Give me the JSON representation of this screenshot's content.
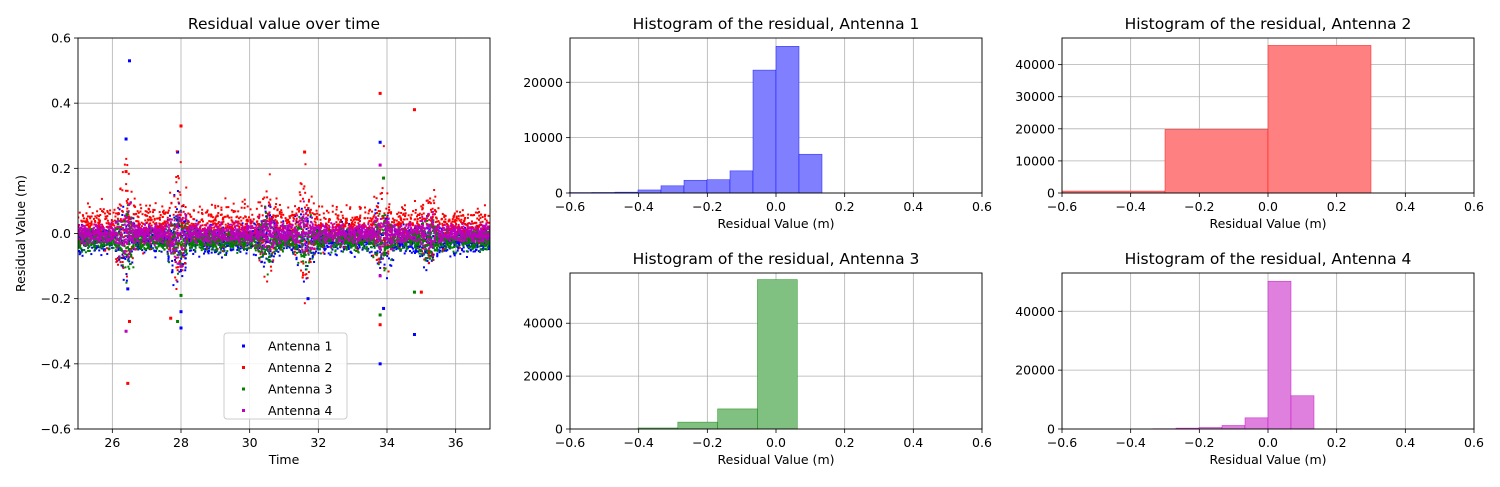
{
  "chart_data": [
    {
      "type": "scatter",
      "title": "Residual value over time",
      "xlabel": "Time",
      "ylabel": "Residual Value (m)",
      "xlim": [
        25,
        37
      ],
      "ylim": [
        -0.6,
        0.6
      ],
      "xticks": [
        "26",
        "28",
        "30",
        "32",
        "34",
        "36"
      ],
      "yticks": [
        "−0.6",
        "−0.4",
        "−0.2",
        "0.0",
        "0.2",
        "0.4",
        "0.6"
      ],
      "grid": true,
      "legend_position": "lower-center",
      "series": [
        {
          "name": "Antenna 1",
          "color": "#0000ff",
          "band": {
            "center": -0.02,
            "spread": 0.09
          },
          "spikes": [
            [
              26.4,
              0.29
            ],
            [
              26.45,
              -0.17
            ],
            [
              26.5,
              0.53
            ],
            [
              28.0,
              -0.29
            ],
            [
              28.0,
              -0.24
            ],
            [
              27.9,
              0.25
            ],
            [
              31.7,
              -0.2
            ],
            [
              33.8,
              0.28
            ],
            [
              33.8,
              -0.4
            ],
            [
              34.8,
              -0.31
            ],
            [
              33.9,
              -0.23
            ]
          ]
        },
        {
          "name": "Antenna 2",
          "color": "#ff0000",
          "band": {
            "center": 0.02,
            "spread": 0.13
          },
          "spikes": [
            [
              26.45,
              -0.46
            ],
            [
              26.5,
              -0.27
            ],
            [
              26.4,
              0.19
            ],
            [
              28.0,
              0.33
            ],
            [
              27.7,
              -0.26
            ],
            [
              31.6,
              0.25
            ],
            [
              33.8,
              0.43
            ],
            [
              34.8,
              0.38
            ],
            [
              33.8,
              -0.28
            ],
            [
              35.0,
              -0.18
            ]
          ]
        },
        {
          "name": "Antenna 3",
          "color": "#008000",
          "band": {
            "center": -0.02,
            "spread": 0.07
          },
          "spikes": [
            [
              28.0,
              -0.19
            ],
            [
              33.9,
              0.17
            ],
            [
              33.8,
              -0.25
            ],
            [
              34.8,
              -0.18
            ],
            [
              27.9,
              -0.27
            ]
          ]
        },
        {
          "name": "Antenna 4",
          "color": "#bf00bf",
          "band": {
            "center": 0.0,
            "spread": 0.06
          },
          "spikes": [
            [
              26.4,
              -0.3
            ],
            [
              33.8,
              0.21
            ],
            [
              28.0,
              -0.1
            ],
            [
              33.8,
              -0.13
            ]
          ]
        }
      ]
    },
    {
      "type": "bar",
      "title": "Histogram of the residual, Antenna 1",
      "xlabel": "Residual Value (m)",
      "xlim": [
        -0.6,
        0.6
      ],
      "ylim": [
        0,
        28000
      ],
      "xticks": [
        "−0.6",
        "−0.4",
        "−0.2",
        "0.0",
        "0.2",
        "0.4",
        "0.6"
      ],
      "yticks": [
        {
          "v": 0,
          "t": "0"
        },
        {
          "v": 10000,
          "t": "10000"
        },
        {
          "v": 20000,
          "t": "20000"
        }
      ],
      "color": "#8080ff",
      "edge": "#0000ff",
      "bins": [
        {
          "x0": -0.603,
          "x1": -0.536,
          "v": 80
        },
        {
          "x0": -0.536,
          "x1": -0.469,
          "v": 100
        },
        {
          "x0": -0.469,
          "x1": -0.402,
          "v": 150
        },
        {
          "x0": -0.402,
          "x1": -0.335,
          "v": 550
        },
        {
          "x0": -0.335,
          "x1": -0.268,
          "v": 1300
        },
        {
          "x0": -0.268,
          "x1": -0.201,
          "v": 2300
        },
        {
          "x0": -0.201,
          "x1": -0.134,
          "v": 2400
        },
        {
          "x0": -0.134,
          "x1": -0.067,
          "v": 4000
        },
        {
          "x0": -0.067,
          "x1": 0.0,
          "v": 22200
        },
        {
          "x0": 0.0,
          "x1": 0.067,
          "v": 26500
        },
        {
          "x0": 0.067,
          "x1": 0.134,
          "v": 7000
        }
      ]
    },
    {
      "type": "bar",
      "title": "Histogram of the residual, Antenna 2",
      "xlabel": "Residual Value (m)",
      "xlim": [
        -0.6,
        0.6
      ],
      "ylim": [
        0,
        48300
      ],
      "xticks": [
        "−0.6",
        "−0.4",
        "−0.2",
        "0.0",
        "0.2",
        "0.4",
        "0.6"
      ],
      "yticks": [
        {
          "v": 0,
          "t": "0"
        },
        {
          "v": 10000,
          "t": "10000"
        },
        {
          "v": 20000,
          "t": "20000"
        },
        {
          "v": 30000,
          "t": "30000"
        },
        {
          "v": 40000,
          "t": "40000"
        }
      ],
      "color": "#ff8080",
      "edge": "#ff0000",
      "bins": [
        {
          "x0": -0.6,
          "x1": -0.3,
          "v": 600
        },
        {
          "x0": -0.3,
          "x1": 0.0,
          "v": 19800
        },
        {
          "x0": 0.0,
          "x1": 0.3,
          "v": 46000
        }
      ]
    },
    {
      "type": "bar",
      "title": "Histogram of the residual, Antenna 3",
      "xlabel": "Residual Value (m)",
      "xlim": [
        -0.6,
        0.6
      ],
      "ylim": [
        0,
        59000
      ],
      "xticks": [
        "−0.6",
        "−0.4",
        "−0.2",
        "0.0",
        "0.2",
        "0.4",
        "0.6"
      ],
      "yticks": [
        {
          "v": 0,
          "t": "0"
        },
        {
          "v": 20000,
          "t": "20000"
        },
        {
          "v": 40000,
          "t": "40000"
        }
      ],
      "color": "#80c080",
      "edge": "#008000",
      "bins": [
        {
          "x0": -0.402,
          "x1": -0.286,
          "v": 400
        },
        {
          "x0": -0.286,
          "x1": -0.17,
          "v": 2600
        },
        {
          "x0": -0.17,
          "x1": -0.054,
          "v": 7600
        },
        {
          "x0": -0.054,
          "x1": 0.062,
          "v": 56500
        }
      ]
    },
    {
      "type": "bar",
      "title": "Histogram of the residual, Antenna 4",
      "xlabel": "Residual Value (m)",
      "xlim": [
        -0.6,
        0.6
      ],
      "ylim": [
        0,
        53000
      ],
      "xticks": [
        "−0.6",
        "−0.4",
        "−0.2",
        "0.0",
        "0.2",
        "0.4",
        "0.6"
      ],
      "yticks": [
        {
          "v": 0,
          "t": "0"
        },
        {
          "v": 20000,
          "t": "20000"
        },
        {
          "v": 40000,
          "t": "40000"
        }
      ],
      "color": "#df80df",
      "edge": "#bf00bf",
      "bins": [
        {
          "x0": -0.335,
          "x1": -0.268,
          "v": 100
        },
        {
          "x0": -0.268,
          "x1": -0.201,
          "v": 300
        },
        {
          "x0": -0.201,
          "x1": -0.134,
          "v": 500
        },
        {
          "x0": -0.134,
          "x1": -0.067,
          "v": 1200
        },
        {
          "x0": -0.067,
          "x1": 0.0,
          "v": 3800
        },
        {
          "x0": 0.0,
          "x1": 0.067,
          "v": 50200
        },
        {
          "x0": 0.067,
          "x1": 0.134,
          "v": 11300
        }
      ]
    }
  ]
}
